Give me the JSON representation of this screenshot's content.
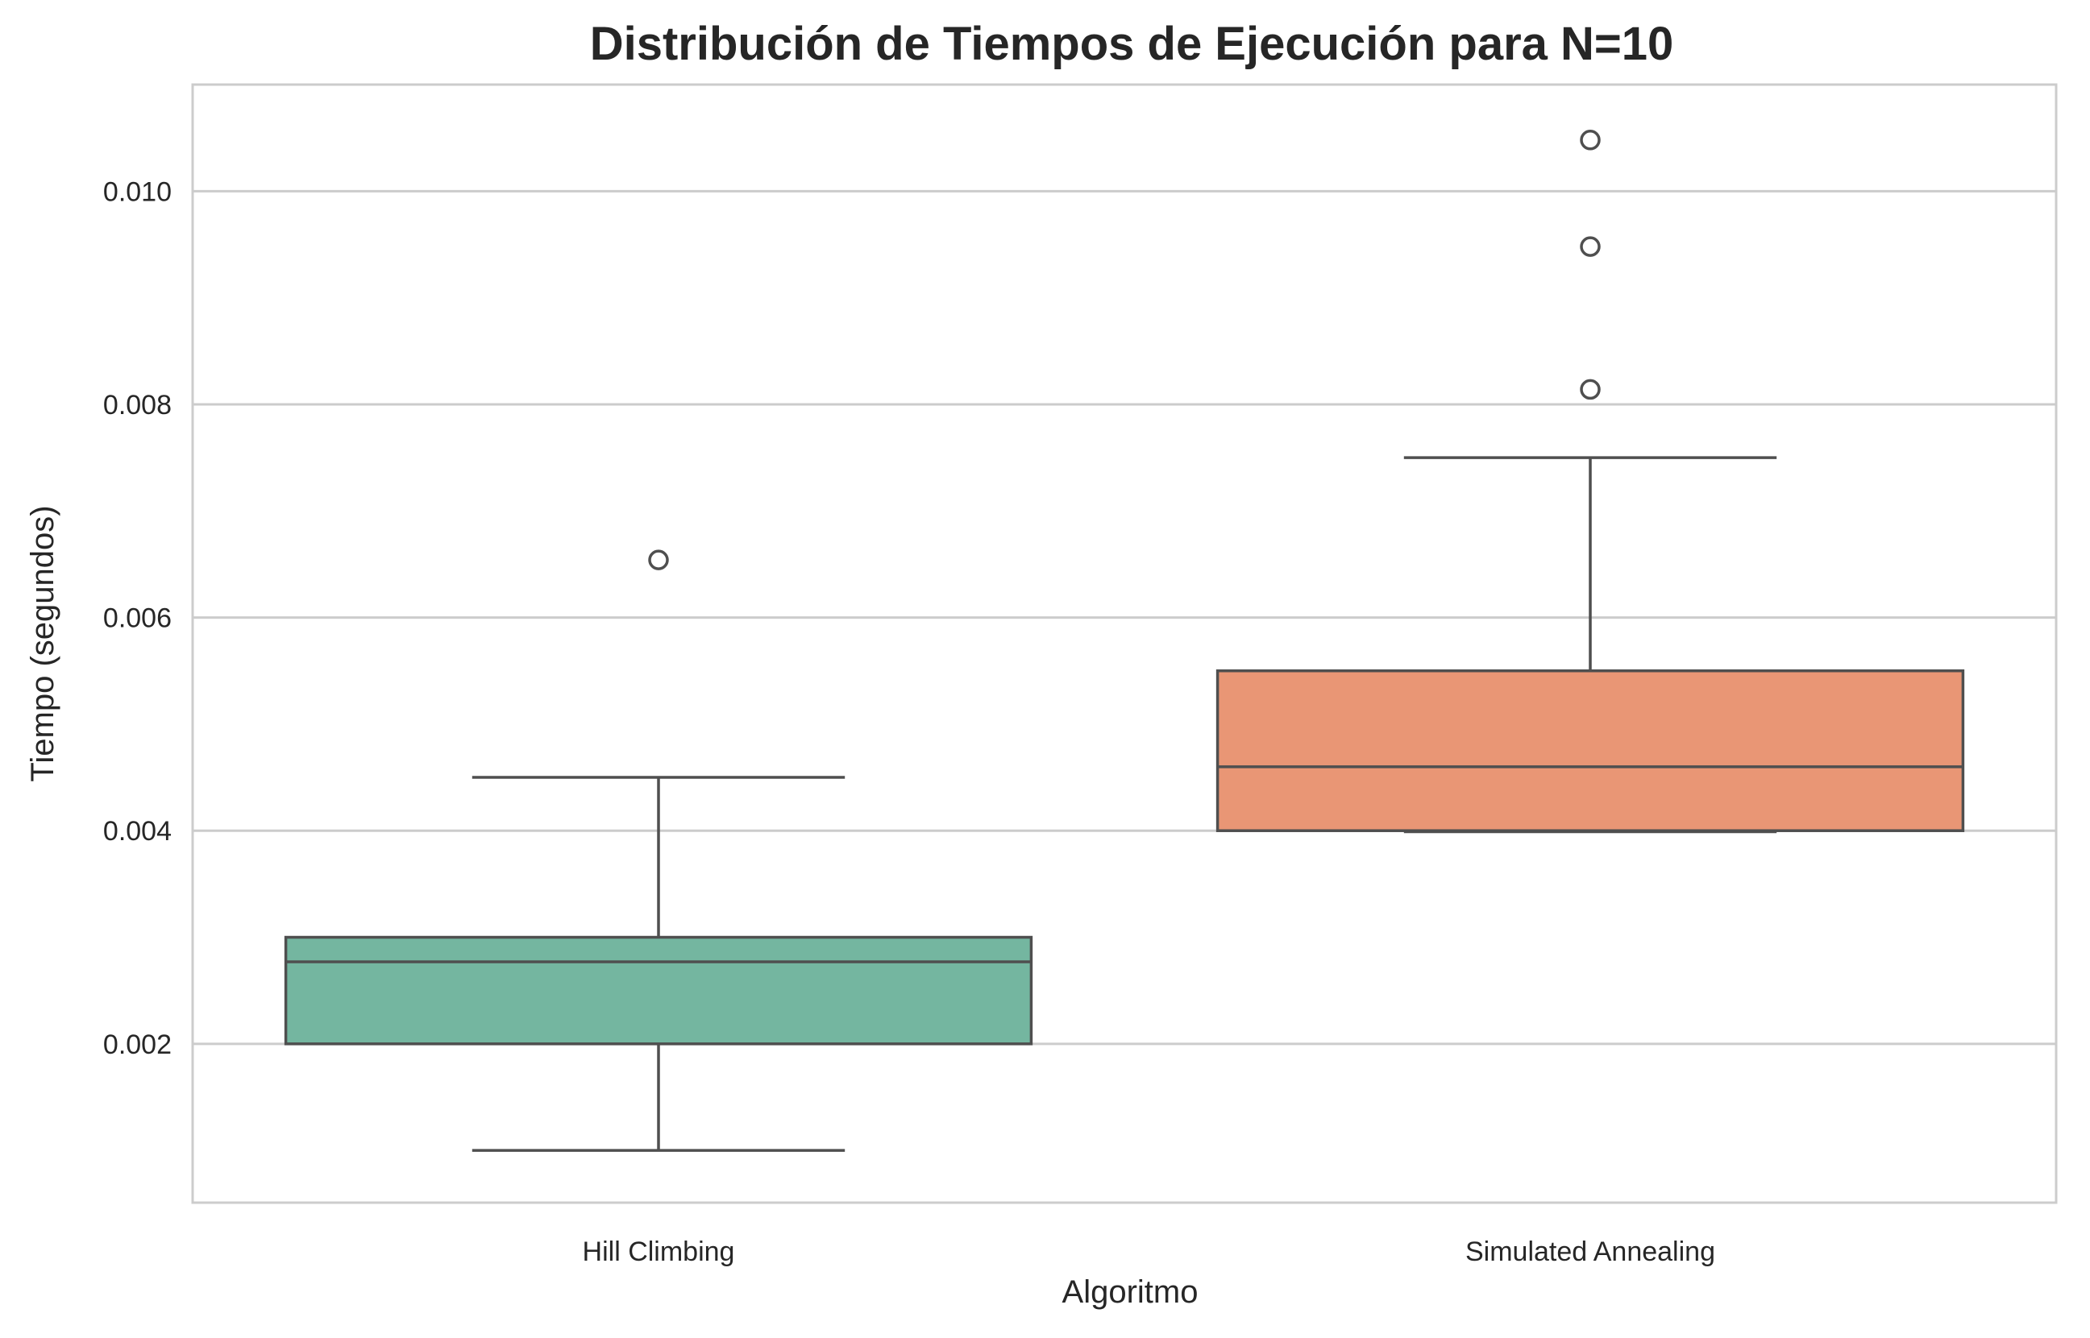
{
  "chart_data": {
    "type": "box",
    "title": "Distribución de Tiempos de Ejecución para N=10",
    "xlabel": "Algoritmo",
    "ylabel": "Tiempo (segundos)",
    "ylim": [
      0.00051,
      0.011
    ],
    "yticks": [
      0.002,
      0.004,
      0.006,
      0.008,
      0.01
    ],
    "ytick_labels": [
      "0.002",
      "0.004",
      "0.006",
      "0.008",
      "0.010"
    ],
    "grid": true,
    "categories": [
      "Hill Climbing",
      "Simulated Annealing"
    ],
    "boxes": [
      {
        "label": "Hill Climbing",
        "color": "#74b6a0",
        "whisker_low": 0.001,
        "q1": 0.002,
        "median": 0.00277,
        "q3": 0.003,
        "whisker_high": 0.0045,
        "outliers": [
          0.00654
        ]
      },
      {
        "label": "Simulated Annealing",
        "color": "#e99675",
        "whisker_low": 0.00399,
        "q1": 0.004,
        "median": 0.0046,
        "q3": 0.0055,
        "whisker_high": 0.0075,
        "outliers": [
          0.00814,
          0.00948,
          0.01048
        ]
      }
    ]
  }
}
